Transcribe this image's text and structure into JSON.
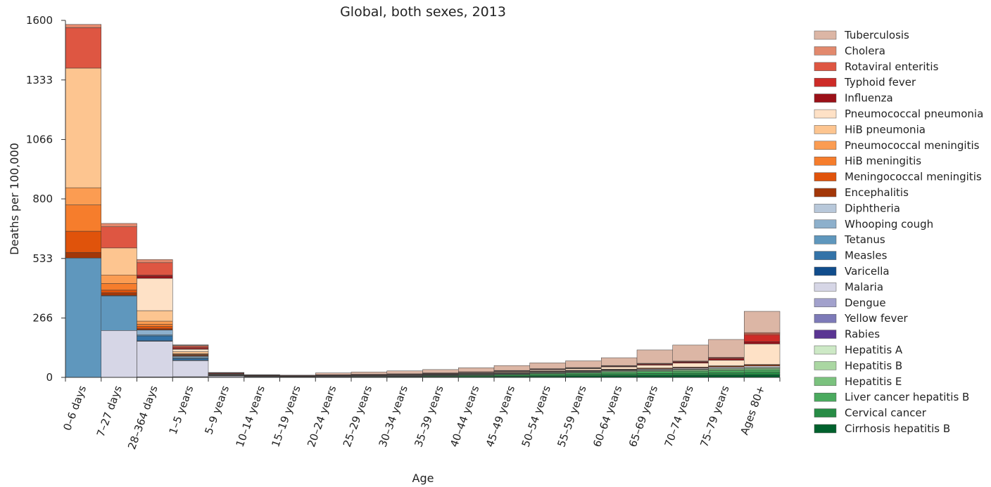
{
  "chart_data": {
    "type": "bar",
    "title": "Global, both sexes, 2013",
    "xlabel": "Age",
    "ylabel": "Deaths per 100,000",
    "ylim": [
      0,
      1600
    ],
    "yticks": [
      0,
      266,
      533,
      800,
      1066,
      1333,
      1600
    ],
    "stacked": true,
    "legend_position": "right",
    "categories": [
      "0–6 days",
      "7–27 days",
      "28–364 days",
      "1–5 years",
      "5–9 years",
      "10–14 years",
      "15–19 years",
      "20–24 years",
      "25–29 years",
      "30–34 years",
      "35–39 years",
      "40–44 years",
      "45–49 years",
      "50–54 years",
      "55–59 years",
      "60–64 years",
      "65–69 years",
      "70–74 years",
      "75–79 years",
      "Ages 80+"
    ],
    "series": [
      {
        "name": "Cirrhosis hepatitis B",
        "color": "#00612d",
        "values": [
          0,
          0,
          0,
          0,
          0,
          0,
          0,
          1,
          1,
          2,
          3,
          4,
          5,
          6,
          7,
          8,
          9,
          10,
          11,
          12
        ]
      },
      {
        "name": "Cervical cancer",
        "color": "#278c45",
        "values": [
          0,
          0,
          0,
          0,
          0,
          0,
          0,
          1,
          2,
          2,
          3,
          4,
          5,
          6,
          7,
          8,
          9,
          9,
          10,
          11
        ]
      },
      {
        "name": "Liver cancer hepatitis B",
        "color": "#4aaa5e",
        "values": [
          0,
          0,
          0,
          0,
          0,
          0,
          0,
          0,
          1,
          1,
          2,
          3,
          4,
          5,
          6,
          7,
          8,
          9,
          10,
          11
        ]
      },
      {
        "name": "Hepatitis E",
        "color": "#7bc27e",
        "values": [
          0,
          0,
          0,
          0,
          0,
          0,
          0,
          0,
          0,
          0,
          1,
          1,
          1,
          2,
          2,
          3,
          3,
          4,
          4,
          5
        ]
      },
      {
        "name": "Hepatitis B",
        "color": "#aad7a2",
        "values": [
          0,
          0,
          0,
          0,
          0,
          0,
          0,
          1,
          1,
          1,
          1,
          2,
          2,
          3,
          3,
          4,
          4,
          4,
          5,
          5
        ]
      },
      {
        "name": "Hepatitis A",
        "color": "#cde9c6",
        "values": [
          0,
          0,
          0,
          0,
          0,
          0,
          0,
          0,
          0,
          0,
          0,
          0,
          0,
          1,
          1,
          1,
          1,
          1,
          1,
          1
        ]
      },
      {
        "name": "Rabies",
        "color": "#5a3593",
        "values": [
          0,
          0,
          0,
          1,
          1,
          0,
          0,
          0,
          0,
          0,
          0,
          0,
          0,
          0,
          0,
          0,
          0,
          0,
          0,
          0
        ]
      },
      {
        "name": "Yellow fever",
        "color": "#7d7ab8",
        "values": [
          0,
          0,
          1,
          1,
          0,
          0,
          0,
          0,
          0,
          0,
          0,
          0,
          0,
          0,
          0,
          0,
          0,
          0,
          0,
          0
        ]
      },
      {
        "name": "Dengue",
        "color": "#a2a1cc",
        "values": [
          0,
          0,
          1,
          1,
          0,
          0,
          0,
          0,
          0,
          0,
          0,
          0,
          0,
          0,
          0,
          0,
          0,
          0,
          0,
          0
        ]
      },
      {
        "name": "Malaria",
        "color": "#d6d6e6",
        "values": [
          0,
          210,
          160,
          72,
          5,
          3,
          2,
          2,
          2,
          2,
          2,
          2,
          2,
          2,
          2,
          2,
          3,
          4,
          5,
          6
        ]
      },
      {
        "name": "Varicella",
        "color": "#114d8c",
        "values": [
          0,
          0,
          2,
          2,
          0,
          0,
          0,
          0,
          0,
          0,
          0,
          0,
          0,
          0,
          0,
          0,
          0,
          0,
          0,
          0
        ]
      },
      {
        "name": "Measles",
        "color": "#3373a8",
        "values": [
          0,
          0,
          22,
          8,
          1,
          0,
          0,
          0,
          0,
          0,
          0,
          0,
          0,
          0,
          0,
          0,
          0,
          0,
          0,
          0
        ]
      },
      {
        "name": "Tetanus",
        "color": "#5f97bd",
        "values": [
          535,
          155,
          4,
          3,
          1,
          1,
          0,
          0,
          0,
          0,
          0,
          0,
          0,
          0,
          0,
          0,
          0,
          0,
          0,
          0
        ]
      },
      {
        "name": "Whooping cough",
        "color": "#8db0cc",
        "values": [
          0,
          2,
          22,
          6,
          0,
          0,
          0,
          0,
          0,
          0,
          0,
          0,
          0,
          0,
          0,
          0,
          0,
          0,
          0,
          0
        ]
      },
      {
        "name": "Diphtheria",
        "color": "#b8c8da",
        "values": [
          0,
          0,
          1,
          1,
          0,
          0,
          0,
          0,
          0,
          0,
          0,
          0,
          0,
          0,
          0,
          0,
          0,
          0,
          0,
          0
        ]
      },
      {
        "name": "Encephalitis",
        "color": "#a33708",
        "values": [
          25,
          12,
          5,
          3,
          1,
          1,
          1,
          1,
          1,
          1,
          1,
          1,
          2,
          2,
          2,
          2,
          3,
          3,
          4,
          5
        ]
      },
      {
        "name": "Meningococcal meningitis",
        "color": "#e0530b",
        "values": [
          95,
          12,
          10,
          3,
          1,
          1,
          1,
          1,
          1,
          1,
          1,
          1,
          1,
          1,
          1,
          1,
          1,
          1,
          1,
          1
        ]
      },
      {
        "name": "HiB meningitis",
        "color": "#f67d2c",
        "values": [
          118,
          30,
          10,
          3,
          1,
          0,
          0,
          0,
          0,
          0,
          0,
          0,
          0,
          0,
          0,
          0,
          0,
          0,
          0,
          0
        ]
      },
      {
        "name": "Pneumococcal meningitis",
        "color": "#fb9c52",
        "values": [
          77,
          38,
          14,
          2,
          1,
          1,
          1,
          1,
          1,
          1,
          1,
          1,
          1,
          1,
          1,
          1,
          1,
          1,
          1,
          1
        ]
      },
      {
        "name": "HiB pneumonia",
        "color": "#fdc590",
        "values": [
          536,
          121,
          47,
          9,
          1,
          0,
          0,
          0,
          0,
          0,
          0,
          0,
          0,
          0,
          0,
          0,
          0,
          0,
          0,
          0
        ]
      },
      {
        "name": "Pneumococcal pneumonia",
        "color": "#fee1c6",
        "values": [
          0,
          0,
          145,
          11,
          2,
          1,
          1,
          1,
          1,
          2,
          2,
          3,
          3,
          5,
          7,
          10,
          13,
          18,
          25,
          92
        ]
      },
      {
        "name": "Influenza",
        "color": "#9b1018",
        "values": [
          0,
          0,
          10,
          3,
          1,
          0,
          0,
          0,
          0,
          0,
          0,
          0,
          1,
          1,
          1,
          2,
          3,
          4,
          6,
          10
        ]
      },
      {
        "name": "Typhoid fever",
        "color": "#cd2b27",
        "values": [
          0,
          0,
          5,
          5,
          3,
          2,
          2,
          2,
          2,
          2,
          2,
          2,
          2,
          2,
          2,
          2,
          3,
          3,
          4,
          30
        ]
      },
      {
        "name": "Rotaviral enteritis",
        "color": "#de5642",
        "values": [
          181,
          95,
          55,
          6,
          1,
          0,
          0,
          0,
          0,
          0,
          0,
          0,
          0,
          0,
          0,
          0,
          0,
          0,
          0,
          6
        ]
      },
      {
        "name": "Cholera",
        "color": "#e2896d",
        "values": [
          15,
          15,
          14,
          3,
          1,
          1,
          1,
          1,
          1,
          1,
          1,
          1,
          2,
          2,
          2,
          2,
          2,
          2,
          3,
          5
        ]
      },
      {
        "name": "Tuberculosis",
        "color": "#dcb6a5",
        "values": [
          0,
          0,
          0,
          3,
          1,
          1,
          1,
          8,
          10,
          13,
          15,
          18,
          22,
          26,
          30,
          35,
          60,
          72,
          80,
          95
        ]
      }
    ]
  }
}
